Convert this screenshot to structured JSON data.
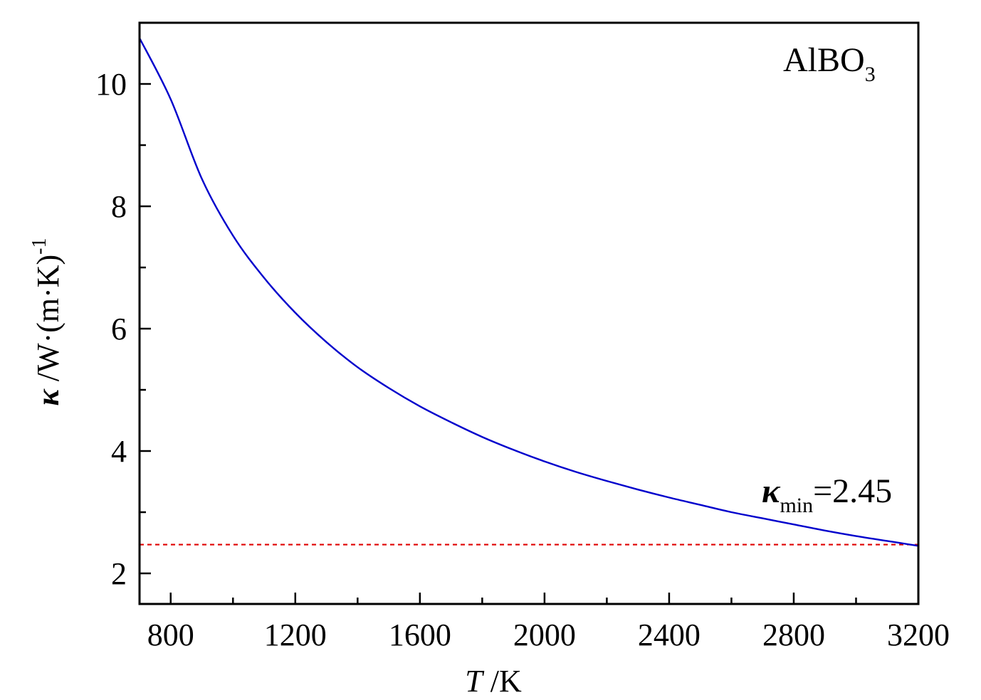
{
  "chart_data": {
    "type": "line",
    "title": "",
    "xlabel": {
      "italic": "T",
      "text": " /K"
    },
    "ylabel": {
      "kappa": "κ",
      "main": " /W·(m·K)",
      "sup": "-1"
    },
    "xlim": [
      700,
      3200
    ],
    "ylim": [
      1.5,
      11
    ],
    "xticks": [
      800,
      1200,
      1600,
      2000,
      2400,
      2800,
      3200
    ],
    "xtick_labels": [
      "800",
      "1200",
      "1600",
      "2000",
      "2400",
      "2800",
      "3200"
    ],
    "x_minor_step": 200,
    "yticks": [
      2,
      4,
      6,
      8,
      10
    ],
    "ytick_labels": [
      "2",
      "4",
      "6",
      "8",
      "10"
    ],
    "y_minor_step": 1,
    "grid": false,
    "series": [
      {
        "color": "#0000cc",
        "style": "solid",
        "x": [
          700,
          800,
          900,
          1000,
          1100,
          1200,
          1300,
          1400,
          1500,
          1600,
          1700,
          1800,
          1900,
          2000,
          2100,
          2200,
          2300,
          2400,
          2500,
          2600,
          2700,
          2800,
          2900,
          3000,
          3100,
          3200
        ],
        "y": [
          10.75,
          9.75,
          8.45,
          7.52,
          6.83,
          6.26,
          5.78,
          5.37,
          5.03,
          4.73,
          4.47,
          4.23,
          4.02,
          3.83,
          3.66,
          3.51,
          3.37,
          3.24,
          3.12,
          3.0,
          2.9,
          2.8,
          2.7,
          2.61,
          2.53,
          2.45
        ]
      }
    ],
    "reference_line": {
      "y": 2.47,
      "color": "#e00000",
      "style": "dashed"
    },
    "annotations": {
      "compound": {
        "main": "AlBO",
        "sub": "3"
      },
      "kmin": {
        "kappa": "κ",
        "sub": "min",
        "value": "=2.45"
      }
    }
  }
}
